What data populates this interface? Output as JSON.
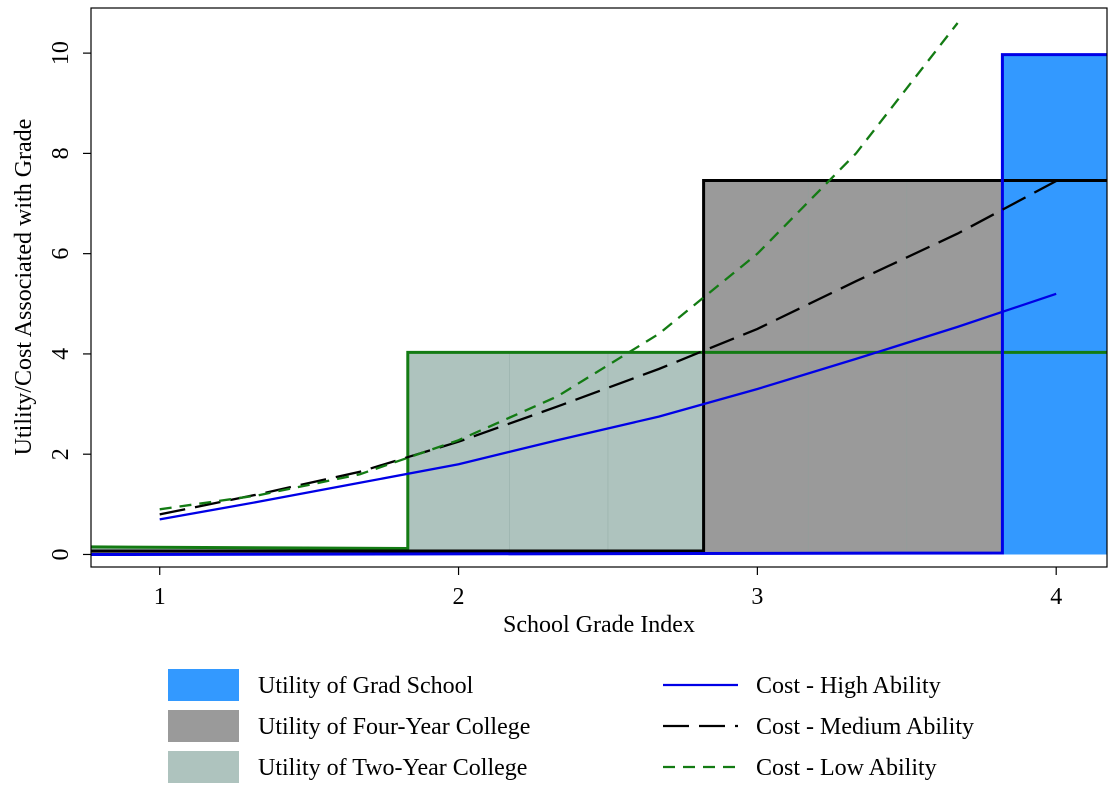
{
  "chart_data": {
    "type": "area",
    "xlabel": "School Grade Index",
    "ylabel": "Utility/Cost Associated with Grade",
    "xlim": [
      0.77,
      4.17
    ],
    "ylim": [
      -0.25,
      10.9
    ],
    "x_ticks": [
      1,
      2,
      3,
      4
    ],
    "y_ticks": [
      0,
      2,
      4,
      6,
      8,
      10
    ],
    "grid": false,
    "legend_position": "bottom",
    "step_series": [
      {
        "name": "Utility of Two-Year College",
        "fill_color": "#aec3be",
        "edge_color": "#137b13",
        "points": [
          [
            0.77,
            0.15
          ],
          [
            1.83,
            0.12
          ],
          [
            1.83,
            4.03
          ],
          [
            4.17,
            4.03
          ]
        ]
      },
      {
        "name": "Utility of Four-Year College",
        "fill_color": "#9a9a9a",
        "edge_color": "#000000",
        "points": [
          [
            0.77,
            0.07
          ],
          [
            2.82,
            0.07
          ],
          [
            2.82,
            7.46
          ],
          [
            4.17,
            7.46
          ]
        ]
      },
      {
        "name": "Utility of Grad School",
        "fill_color": "#3399ff",
        "edge_color": "#0000e6",
        "points": [
          [
            0.77,
            0.0
          ],
          [
            3.82,
            0.03
          ],
          [
            3.82,
            9.97
          ],
          [
            4.17,
            9.97
          ]
        ]
      }
    ],
    "line_series": [
      {
        "name": "Cost - High Ability",
        "color": "#0000e6",
        "dash": "solid",
        "x": [
          1.0,
          1.33,
          1.67,
          2.0,
          2.33,
          2.67,
          3.0,
          3.33,
          3.67,
          4.0
        ],
        "y": [
          0.7,
          1.05,
          1.43,
          1.8,
          2.28,
          2.75,
          3.3,
          3.9,
          4.54,
          5.2
        ]
      },
      {
        "name": "Cost - Medium Ability",
        "color": "#000000",
        "dash": "long",
        "x": [
          1.0,
          1.33,
          1.67,
          2.0,
          2.33,
          2.67,
          3.0,
          3.33,
          3.67,
          4.0
        ],
        "y": [
          0.8,
          1.2,
          1.65,
          2.25,
          2.95,
          3.7,
          4.5,
          5.45,
          6.4,
          7.45
        ]
      },
      {
        "name": "Cost - Low Ability",
        "color": "#137b13",
        "dash": "short",
        "x": [
          1.0,
          1.33,
          1.67,
          2.0,
          2.33,
          2.67,
          3.0,
          3.33,
          3.67
        ],
        "y": [
          0.9,
          1.18,
          1.6,
          2.28,
          3.15,
          4.4,
          6.0,
          8.0,
          10.6
        ]
      }
    ],
    "legend": [
      {
        "label": "Utility of Grad School",
        "kind": "box",
        "color": "#3399ff",
        "dash": ""
      },
      {
        "label": "Cost - High Ability",
        "kind": "line",
        "color": "#0000e6",
        "dash": "solid"
      },
      {
        "label": "Utility of Four-Year College",
        "kind": "box",
        "color": "#9a9a9a",
        "dash": ""
      },
      {
        "label": "Cost - Medium Ability",
        "kind": "line",
        "color": "#000000",
        "dash": "long"
      },
      {
        "label": "Utility of Two-Year College",
        "kind": "box",
        "color": "#aec3be",
        "dash": ""
      },
      {
        "label": "Cost - Low Ability",
        "kind": "line",
        "color": "#137b13",
        "dash": "short"
      }
    ]
  }
}
